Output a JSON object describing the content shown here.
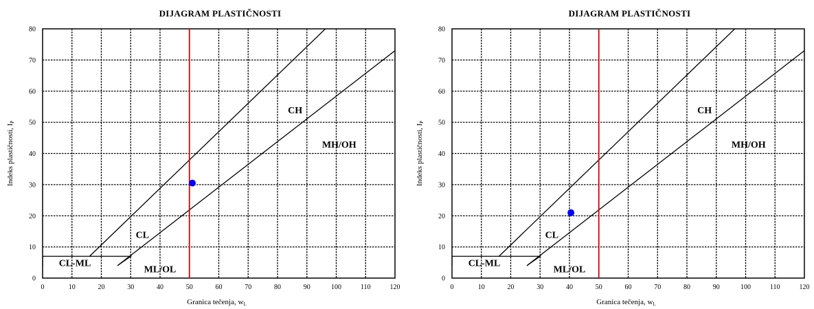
{
  "chart_data": [
    {
      "type": "scatter",
      "title": "DIJAGRAM PLASTIČNOSTI",
      "xlabel": "Granica tečenja, w",
      "xlabel_sub": "L",
      "ylabel": "Indeks plastičnosti, I",
      "ylabel_sub": "P",
      "xlim": [
        0,
        120
      ],
      "ylim": [
        0,
        80
      ],
      "xticks": [
        0,
        10,
        20,
        30,
        40,
        50,
        60,
        70,
        80,
        90,
        100,
        110,
        120
      ],
      "yticks": [
        0,
        10,
        20,
        30,
        40,
        50,
        60,
        70,
        80
      ],
      "grid": true,
      "points": [
        {
          "x": 51,
          "y": 30.5,
          "color": "#0000ff"
        }
      ],
      "vertical_line": {
        "x": 50,
        "color": "#dd0000"
      },
      "u_line": [
        [
          16,
          7
        ],
        [
          96.3,
          80
        ]
      ],
      "a_line": [
        [
          25.5,
          4
        ],
        [
          120,
          73
        ]
      ],
      "cl_ml_band": [
        [
          0,
          4
        ],
        [
          0,
          7
        ],
        [
          30,
          7
        ],
        [
          25.5,
          4
        ]
      ],
      "regions": [
        {
          "label": "CH",
          "x": 86,
          "y": 54
        },
        {
          "label": "MH/OH",
          "x": 101,
          "y": 43
        },
        {
          "label": "CL",
          "x": 34,
          "y": 14
        },
        {
          "label": "CL-ML",
          "x": 11,
          "y": 5
        },
        {
          "label": "ML/OL",
          "x": 40,
          "y": 3
        }
      ]
    },
    {
      "type": "scatter",
      "title": "DIJAGRAM PLASTIČNOSTI",
      "xlabel": "Granica tečenja, w",
      "xlabel_sub": "L",
      "ylabel": "Indeks plastičnosti, I",
      "ylabel_sub": "P",
      "xlim": [
        0,
        120
      ],
      "ylim": [
        0,
        80
      ],
      "xticks": [
        0,
        10,
        20,
        30,
        40,
        50,
        60,
        70,
        80,
        90,
        100,
        110,
        120
      ],
      "yticks": [
        0,
        10,
        20,
        30,
        40,
        50,
        60,
        70,
        80
      ],
      "grid": true,
      "points": [
        {
          "x": 40.5,
          "y": 21,
          "color": "#0000ff"
        }
      ],
      "vertical_line": {
        "x": 50,
        "color": "#dd0000"
      },
      "u_line": [
        [
          16,
          7
        ],
        [
          96.3,
          80
        ]
      ],
      "a_line": [
        [
          25.5,
          4
        ],
        [
          120,
          73
        ]
      ],
      "cl_ml_band": [
        [
          0,
          4
        ],
        [
          0,
          7
        ],
        [
          30,
          7
        ],
        [
          25.5,
          4
        ]
      ],
      "regions": [
        {
          "label": "CH",
          "x": 86,
          "y": 54
        },
        {
          "label": "MH/OH",
          "x": 101,
          "y": 43
        },
        {
          "label": "CL",
          "x": 34,
          "y": 14
        },
        {
          "label": "CL-ML",
          "x": 11,
          "y": 5
        },
        {
          "label": "ML/OL",
          "x": 40,
          "y": 3
        }
      ]
    }
  ]
}
